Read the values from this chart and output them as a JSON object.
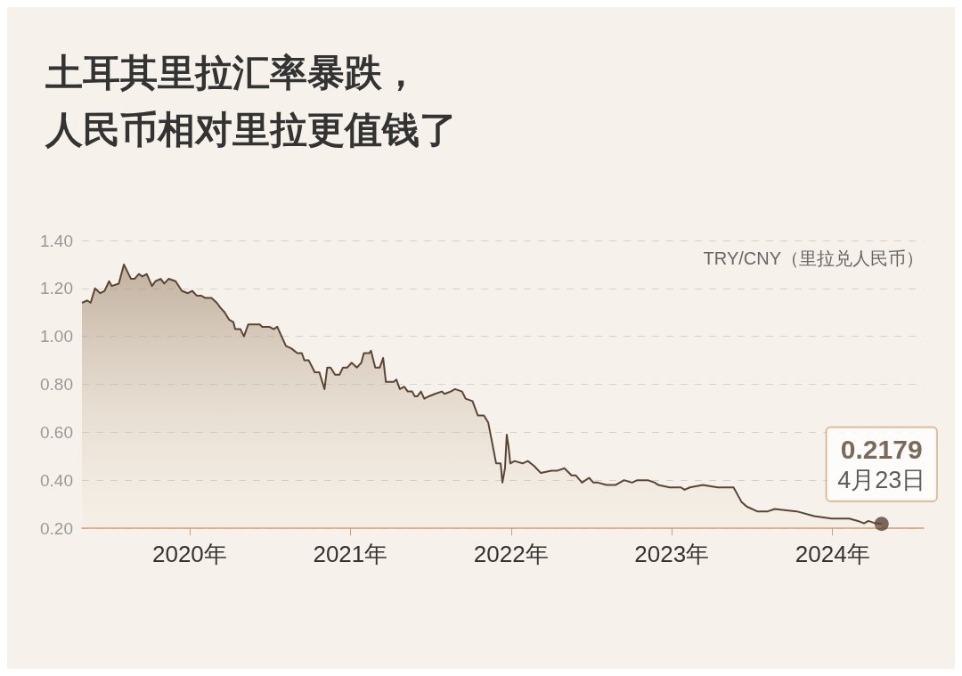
{
  "chart_data": {
    "type": "area",
    "title": "土耳其里拉汇率暴跌，",
    "subtitle": "人民币相对里拉更值钱了",
    "x": [
      2019.33,
      2019.362,
      2019.384,
      2019.411,
      2019.444,
      2019.471,
      2019.499,
      2019.515,
      2019.559,
      2019.591,
      2019.635,
      2019.657,
      2019.684,
      2019.706,
      2019.733,
      2019.766,
      2019.787,
      2019.82,
      2019.842,
      2019.869,
      2019.913,
      2019.951,
      2019.989,
      2020.016,
      2020.044,
      2020.071,
      2020.098,
      2020.136,
      2020.169,
      2020.191,
      2020.218,
      2020.245,
      2020.272,
      2020.283,
      2020.316,
      2020.338,
      2020.365,
      2020.436,
      2020.452,
      2020.496,
      2020.523,
      2020.545,
      2020.599,
      2020.632,
      2020.67,
      2020.698,
      2020.714,
      2020.741,
      2020.779,
      2020.807,
      2020.839,
      2020.856,
      2020.877,
      2020.905,
      2020.932,
      2020.954,
      2020.981,
      2021.008,
      2021.041,
      2021.068,
      2021.084,
      2021.117,
      2021.128,
      2021.155,
      2021.183,
      2021.204,
      2021.221,
      2021.27,
      2021.286,
      2021.308,
      2021.335,
      2021.357,
      2021.384,
      2021.401,
      2021.417,
      2021.439,
      2021.46,
      2021.488,
      2021.526,
      2021.569,
      2021.586,
      2021.624,
      2021.651,
      2021.695,
      2021.717,
      2021.76,
      2021.793,
      2021.831,
      2021.858,
      2021.907,
      2021.935,
      2021.946,
      2021.962,
      2021.973,
      2021.984,
      2021.995,
      2022.022,
      2022.071,
      2022.104,
      2022.142,
      2022.185,
      2022.251,
      2022.289,
      2022.332,
      2022.376,
      2022.403,
      2022.441,
      2022.485,
      2022.512,
      2022.54,
      2022.594,
      2022.649,
      2022.703,
      2022.752,
      2022.785,
      2022.85,
      2022.894,
      2022.916,
      2022.986,
      2023.03,
      2023.057,
      2023.079,
      2023.112,
      2023.193,
      2023.286,
      2023.384,
      2023.433,
      2023.466,
      2023.531,
      2023.597,
      2023.64,
      2023.777,
      2023.886,
      2023.995,
      2024.104,
      2024.158,
      2024.196,
      2024.223,
      2024.267,
      2024.305
    ],
    "series": [
      {
        "name": "TRY/CNY（里拉兑人民币）",
        "color": "#5a4535",
        "values": [
          1.14,
          1.15,
          1.14,
          1.2,
          1.18,
          1.19,
          1.23,
          1.21,
          1.22,
          1.3,
          1.24,
          1.24,
          1.26,
          1.25,
          1.26,
          1.21,
          1.23,
          1.24,
          1.22,
          1.24,
          1.23,
          1.19,
          1.18,
          1.19,
          1.17,
          1.17,
          1.16,
          1.16,
          1.14,
          1.12,
          1.1,
          1.07,
          1.06,
          1.03,
          1.03,
          1.0,
          1.05,
          1.05,
          1.04,
          1.04,
          1.03,
          1.04,
          0.96,
          0.95,
          0.93,
          0.93,
          0.9,
          0.9,
          0.85,
          0.85,
          0.78,
          0.87,
          0.87,
          0.84,
          0.84,
          0.87,
          0.87,
          0.89,
          0.87,
          0.89,
          0.93,
          0.93,
          0.94,
          0.87,
          0.87,
          0.91,
          0.81,
          0.81,
          0.82,
          0.78,
          0.79,
          0.77,
          0.77,
          0.75,
          0.75,
          0.77,
          0.74,
          0.75,
          0.76,
          0.77,
          0.76,
          0.77,
          0.78,
          0.77,
          0.74,
          0.73,
          0.67,
          0.67,
          0.64,
          0.47,
          0.47,
          0.39,
          0.45,
          0.59,
          0.54,
          0.47,
          0.48,
          0.47,
          0.48,
          0.46,
          0.43,
          0.44,
          0.44,
          0.45,
          0.42,
          0.42,
          0.39,
          0.41,
          0.39,
          0.39,
          0.38,
          0.38,
          0.4,
          0.39,
          0.4,
          0.4,
          0.39,
          0.38,
          0.37,
          0.37,
          0.37,
          0.36,
          0.37,
          0.38,
          0.37,
          0.37,
          0.31,
          0.29,
          0.27,
          0.27,
          0.28,
          0.27,
          0.25,
          0.24,
          0.24,
          0.23,
          0.22,
          0.23,
          0.22,
          0.2179
        ]
      }
    ],
    "xlim": [
      2019.33,
      2024.567
    ],
    "xticks": [
      {
        "value": 2020,
        "label": "2020年"
      },
      {
        "value": 2021,
        "label": "2021年"
      },
      {
        "value": 2022,
        "label": "2022年"
      },
      {
        "value": 2023,
        "label": "2023年"
      },
      {
        "value": 2024,
        "label": "2024年"
      }
    ],
    "ylim": [
      0.2,
      1.4
    ],
    "yticks": [
      {
        "value": 0.2,
        "label": "0.20"
      },
      {
        "value": 0.4,
        "label": "0.40"
      },
      {
        "value": 0.6,
        "label": "0.60"
      },
      {
        "value": 0.8,
        "label": "0.80"
      },
      {
        "value": 1.0,
        "label": "1.00"
      },
      {
        "value": 1.2,
        "label": "1.20"
      },
      {
        "value": 1.4,
        "label": "1.40"
      }
    ],
    "grid": "y",
    "marker": "none",
    "annotations": [
      {
        "text": "0.2179",
        "x": 2024.305,
        "y": 0.2179
      },
      {
        "text": "4月23日",
        "x": 2024.305,
        "y": 0.2179
      }
    ]
  }
}
